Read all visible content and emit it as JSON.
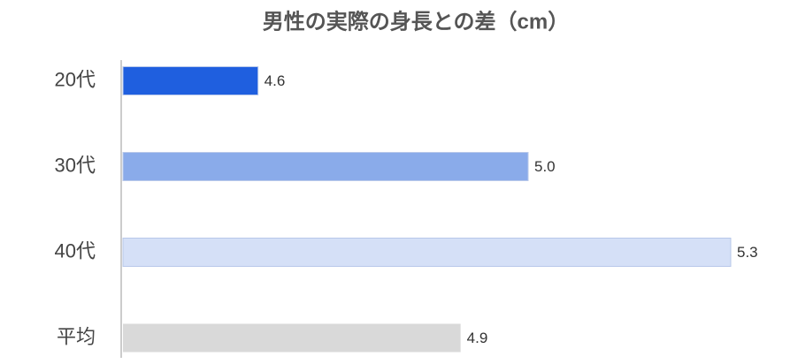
{
  "chart_data": {
    "type": "bar",
    "orientation": "horizontal",
    "title": "男性の実際の身長との差（cm）",
    "categories": [
      "20代",
      "30代",
      "40代",
      "平均"
    ],
    "values": [
      4.6,
      5.0,
      5.3,
      4.9
    ],
    "value_labels": [
      "4.6",
      "5.0",
      "5.3",
      "4.9"
    ],
    "colors": [
      "#1f5fdf",
      "#8aabea",
      "#d5e0f7",
      "#d9d9d9"
    ],
    "xlim": [
      4.4,
      5.3
    ]
  }
}
